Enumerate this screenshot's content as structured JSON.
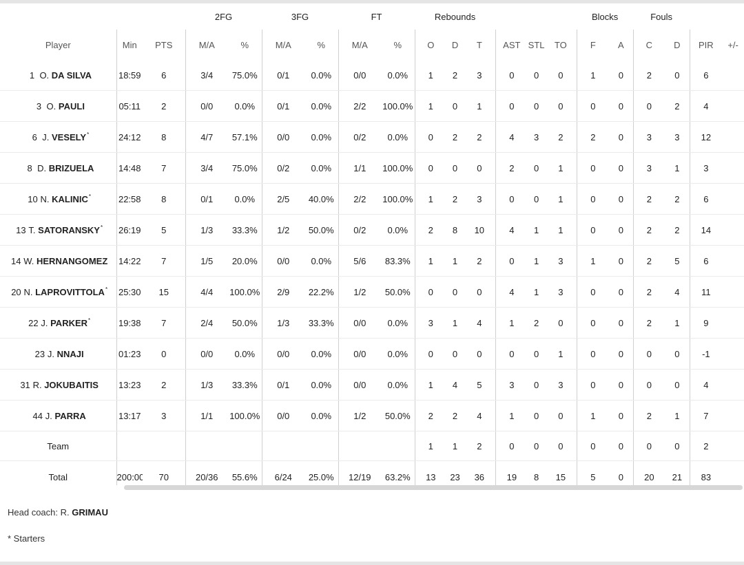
{
  "groups": {
    "fg2": "2FG",
    "fg3": "3FG",
    "ft": "FT",
    "reb": "Rebounds",
    "blocks": "Blocks",
    "fouls": "Fouls"
  },
  "columns": {
    "player": "Player",
    "min": "Min",
    "pts": "PTS",
    "fg2_ma": "M/A",
    "fg2_pct": "%",
    "fg3_ma": "M/A",
    "fg3_pct": "%",
    "ft_ma": "M/A",
    "ft_pct": "%",
    "reb_o": "O",
    "reb_d": "D",
    "reb_t": "T",
    "ast": "AST",
    "stl": "STL",
    "to": "TO",
    "blk_f": "F",
    "blk_a": "A",
    "foul_c": "C",
    "foul_d": "D",
    "pir": "PIR",
    "pm": "+/-"
  },
  "players": [
    {
      "num": "1",
      "first": "O.",
      "last": "DA SILVA",
      "star": "",
      "min": "18:59",
      "pts": "6",
      "fg2": "3/4",
      "fg2p": "75.0%",
      "fg3": "0/1",
      "fg3p": "0.0%",
      "ft": "0/0",
      "ftp": "0.0%",
      "o": "1",
      "d": "2",
      "t": "3",
      "ast": "0",
      "stl": "0",
      "to": "0",
      "bf": "1",
      "ba": "0",
      "fc": "2",
      "fd": "0",
      "pir": "6",
      "pm": ""
    },
    {
      "num": "3",
      "first": "O.",
      "last": "PAULI",
      "star": "",
      "min": "05:11",
      "pts": "2",
      "fg2": "0/0",
      "fg2p": "0.0%",
      "fg3": "0/1",
      "fg3p": "0.0%",
      "ft": "2/2",
      "ftp": "100.0%",
      "o": "1",
      "d": "0",
      "t": "1",
      "ast": "0",
      "stl": "0",
      "to": "0",
      "bf": "0",
      "ba": "0",
      "fc": "0",
      "fd": "2",
      "pir": "4",
      "pm": ""
    },
    {
      "num": "6",
      "first": "J.",
      "last": "VESELY",
      "star": "*",
      "min": "24:12",
      "pts": "8",
      "fg2": "4/7",
      "fg2p": "57.1%",
      "fg3": "0/0",
      "fg3p": "0.0%",
      "ft": "0/2",
      "ftp": "0.0%",
      "o": "0",
      "d": "2",
      "t": "2",
      "ast": "4",
      "stl": "3",
      "to": "2",
      "bf": "2",
      "ba": "0",
      "fc": "3",
      "fd": "3",
      "pir": "12",
      "pm": ""
    },
    {
      "num": "8",
      "first": "D.",
      "last": "BRIZUELA",
      "star": "",
      "min": "14:48",
      "pts": "7",
      "fg2": "3/4",
      "fg2p": "75.0%",
      "fg3": "0/2",
      "fg3p": "0.0%",
      "ft": "1/1",
      "ftp": "100.0%",
      "o": "0",
      "d": "0",
      "t": "0",
      "ast": "2",
      "stl": "0",
      "to": "1",
      "bf": "0",
      "ba": "0",
      "fc": "3",
      "fd": "1",
      "pir": "3",
      "pm": ""
    },
    {
      "num": "10",
      "first": "N.",
      "last": "KALINIC",
      "star": "*",
      "min": "22:58",
      "pts": "8",
      "fg2": "0/1",
      "fg2p": "0.0%",
      "fg3": "2/5",
      "fg3p": "40.0%",
      "ft": "2/2",
      "ftp": "100.0%",
      "o": "1",
      "d": "2",
      "t": "3",
      "ast": "0",
      "stl": "0",
      "to": "1",
      "bf": "0",
      "ba": "0",
      "fc": "2",
      "fd": "2",
      "pir": "6",
      "pm": ""
    },
    {
      "num": "13",
      "first": "T.",
      "last": "SATORANSKY",
      "star": "*",
      "min": "26:19",
      "pts": "5",
      "fg2": "1/3",
      "fg2p": "33.3%",
      "fg3": "1/2",
      "fg3p": "50.0%",
      "ft": "0/2",
      "ftp": "0.0%",
      "o": "2",
      "d": "8",
      "t": "10",
      "ast": "4",
      "stl": "1",
      "to": "1",
      "bf": "0",
      "ba": "0",
      "fc": "2",
      "fd": "2",
      "pir": "14",
      "pm": ""
    },
    {
      "num": "14",
      "first": "W.",
      "last": "HERNANGOMEZ",
      "star": "",
      "min": "14:22",
      "pts": "7",
      "fg2": "1/5",
      "fg2p": "20.0%",
      "fg3": "0/0",
      "fg3p": "0.0%",
      "ft": "5/6",
      "ftp": "83.3%",
      "o": "1",
      "d": "1",
      "t": "2",
      "ast": "0",
      "stl": "1",
      "to": "3",
      "bf": "1",
      "ba": "0",
      "fc": "2",
      "fd": "5",
      "pir": "6",
      "pm": ""
    },
    {
      "num": "20",
      "first": "N.",
      "last": "LAPROVITTOLA",
      "star": "*",
      "min": "25:30",
      "pts": "15",
      "fg2": "4/4",
      "fg2p": "100.0%",
      "fg3": "2/9",
      "fg3p": "22.2%",
      "ft": "1/2",
      "ftp": "50.0%",
      "o": "0",
      "d": "0",
      "t": "0",
      "ast": "4",
      "stl": "1",
      "to": "3",
      "bf": "0",
      "ba": "0",
      "fc": "2",
      "fd": "4",
      "pir": "11",
      "pm": ""
    },
    {
      "num": "22",
      "first": "J.",
      "last": "PARKER",
      "star": "*",
      "min": "19:38",
      "pts": "7",
      "fg2": "2/4",
      "fg2p": "50.0%",
      "fg3": "1/3",
      "fg3p": "33.3%",
      "ft": "0/0",
      "ftp": "0.0%",
      "o": "3",
      "d": "1",
      "t": "4",
      "ast": "1",
      "stl": "2",
      "to": "0",
      "bf": "0",
      "ba": "0",
      "fc": "2",
      "fd": "1",
      "pir": "9",
      "pm": ""
    },
    {
      "num": "23",
      "first": "J.",
      "last": "NNAJI",
      "star": "",
      "min": "01:23",
      "pts": "0",
      "fg2": "0/0",
      "fg2p": "0.0%",
      "fg3": "0/0",
      "fg3p": "0.0%",
      "ft": "0/0",
      "ftp": "0.0%",
      "o": "0",
      "d": "0",
      "t": "0",
      "ast": "0",
      "stl": "0",
      "to": "1",
      "bf": "0",
      "ba": "0",
      "fc": "0",
      "fd": "0",
      "pir": "-1",
      "pm": ""
    },
    {
      "num": "31",
      "first": "R.",
      "last": "JOKUBAITIS",
      "star": "",
      "min": "13:23",
      "pts": "2",
      "fg2": "1/3",
      "fg2p": "33.3%",
      "fg3": "0/1",
      "fg3p": "0.0%",
      "ft": "0/0",
      "ftp": "0.0%",
      "o": "1",
      "d": "4",
      "t": "5",
      "ast": "3",
      "stl": "0",
      "to": "3",
      "bf": "0",
      "ba": "0",
      "fc": "0",
      "fd": "0",
      "pir": "4",
      "pm": ""
    },
    {
      "num": "44",
      "first": "J.",
      "last": "PARRA",
      "star": "",
      "min": "13:17",
      "pts": "3",
      "fg2": "1/1",
      "fg2p": "100.0%",
      "fg3": "0/0",
      "fg3p": "0.0%",
      "ft": "1/2",
      "ftp": "50.0%",
      "o": "2",
      "d": "2",
      "t": "4",
      "ast": "1",
      "stl": "0",
      "to": "0",
      "bf": "1",
      "ba": "0",
      "fc": "2",
      "fd": "1",
      "pir": "7",
      "pm": ""
    }
  ],
  "team": {
    "label": "Team",
    "min": "",
    "pts": "",
    "fg2": "",
    "fg2p": "",
    "fg3": "",
    "fg3p": "",
    "ft": "",
    "ftp": "",
    "o": "1",
    "d": "1",
    "t": "2",
    "ast": "0",
    "stl": "0",
    "to": "0",
    "bf": "0",
    "ba": "0",
    "fc": "0",
    "fd": "0",
    "pir": "2",
    "pm": ""
  },
  "total": {
    "label": "Total",
    "min": "200:00",
    "pts": "70",
    "fg2": "20/36",
    "fg2p": "55.6%",
    "fg3": "6/24",
    "fg3p": "25.0%",
    "ft": "12/19",
    "ftp": "63.2%",
    "o": "13",
    "d": "23",
    "t": "36",
    "ast": "19",
    "stl": "8",
    "to": "15",
    "bf": "5",
    "ba": "0",
    "fc": "20",
    "fd": "21",
    "pir": "83",
    "pm": ""
  },
  "coach": {
    "prefix": "Head coach: R.",
    "name": "GRIMAU"
  },
  "starters_note": "* Starters"
}
